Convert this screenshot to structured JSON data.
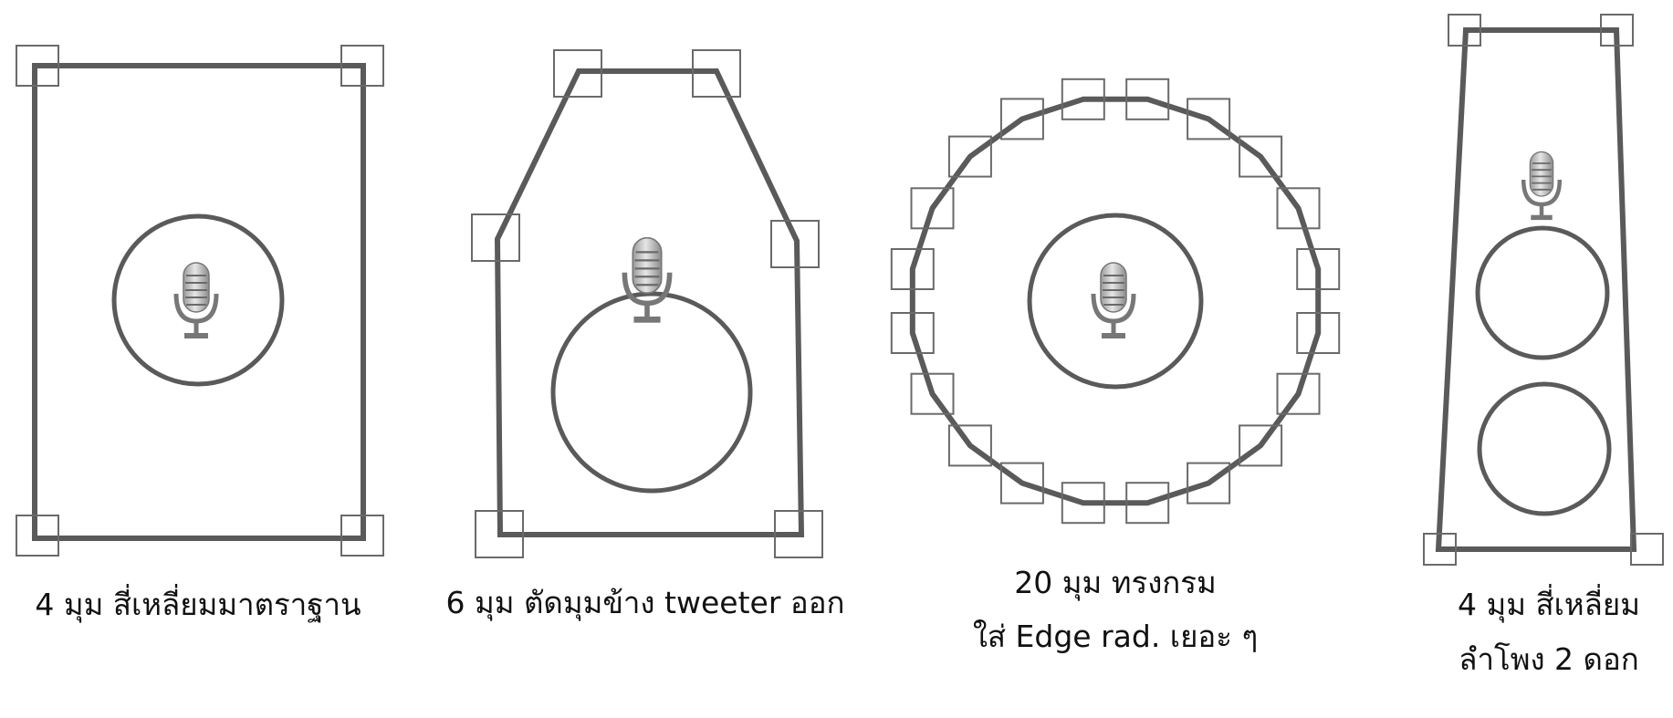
{
  "colors": {
    "outline": "#5a5a5a",
    "handle": "#6a6a6a",
    "mic": "#777777",
    "text": "#111111",
    "background": "#ffffff"
  },
  "panels": [
    {
      "id": "rect-4",
      "caption_lines": [
        "4 มุม สี่เหลี่ยมมาตราฐาน"
      ],
      "corner_count": 4,
      "driver_count": 1,
      "mic_icon": "microphone-icon"
    },
    {
      "id": "hex-6",
      "caption_lines": [
        "6 มุม ตัดมุมข้าง tweeter ออก"
      ],
      "corner_count": 6,
      "driver_count": 1,
      "mic_icon": "microphone-icon"
    },
    {
      "id": "round-20",
      "caption_lines": [
        "20 มุม ทรงกรม",
        "ใส่ Edge rad. เยอะ ๆ"
      ],
      "corner_count": 20,
      "driver_count": 1,
      "mic_icon": "microphone-icon"
    },
    {
      "id": "trap-4",
      "caption_lines": [
        "4 มุม สี่เหลี่ยม",
        "ลำโพง 2 ดอก"
      ],
      "corner_count": 4,
      "driver_count": 2,
      "mic_icon": "microphone-icon"
    }
  ]
}
